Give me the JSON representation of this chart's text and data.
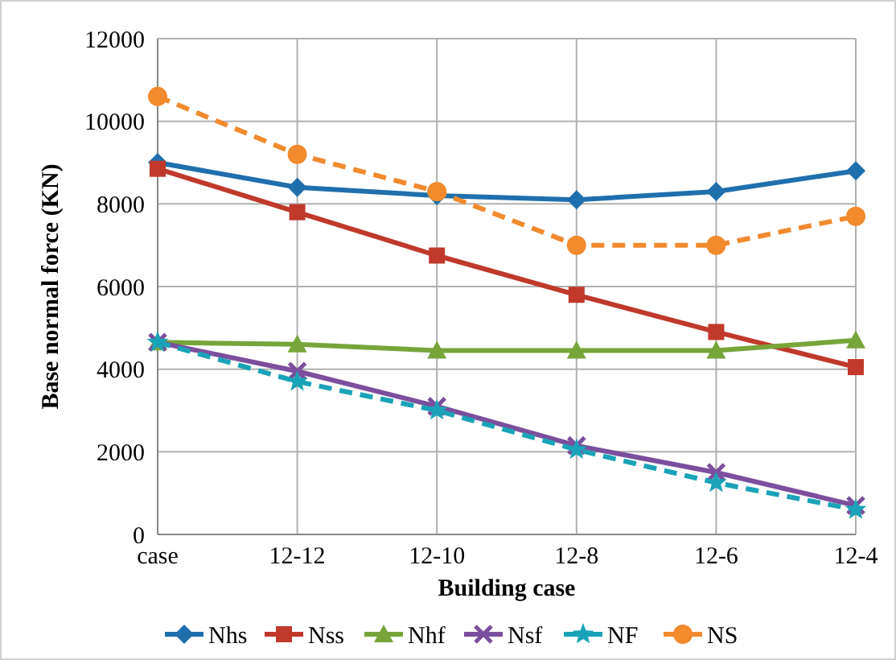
{
  "chart_data": {
    "type": "line",
    "xlabel": "Building case",
    "ylabel": "Base normal force (KN)",
    "categories": [
      "case",
      "12-12",
      "12-10",
      "12-8",
      "12-6",
      "12-4"
    ],
    "ylim": [
      0,
      12000
    ],
    "yticks": [
      0,
      2000,
      4000,
      6000,
      8000,
      10000,
      12000
    ],
    "grid": true,
    "legend": "bottom",
    "series": [
      {
        "name": "Nhs",
        "color": "#1f6fad",
        "marker": "diamond",
        "line_style": "solid",
        "values": [
          9000,
          8400,
          8200,
          8100,
          8300,
          8800
        ]
      },
      {
        "name": "Nss",
        "color": "#c0392b",
        "marker": "square",
        "line_style": "solid",
        "values": [
          8850,
          7800,
          6750,
          5800,
          4900,
          4050
        ]
      },
      {
        "name": "Nhf",
        "color": "#77a53a",
        "marker": "triangle",
        "line_style": "solid",
        "values": [
          4650,
          4600,
          4450,
          4450,
          4450,
          4700
        ]
      },
      {
        "name": "Nsf",
        "color": "#7b4f9d",
        "marker": "cross",
        "line_style": "solid",
        "values": [
          4650,
          3950,
          3100,
          2150,
          1500,
          700
        ]
      },
      {
        "name": "NF",
        "color": "#1aa3b8",
        "marker": "star",
        "line_style": "dashed",
        "values": [
          4650,
          3700,
          3000,
          2050,
          1250,
          600
        ]
      },
      {
        "name": "NS",
        "color": "#f28a2e",
        "marker": "circle",
        "line_style": "dashed",
        "values": [
          10600,
          9200,
          8300,
          7000,
          7000,
          7700
        ]
      }
    ]
  }
}
